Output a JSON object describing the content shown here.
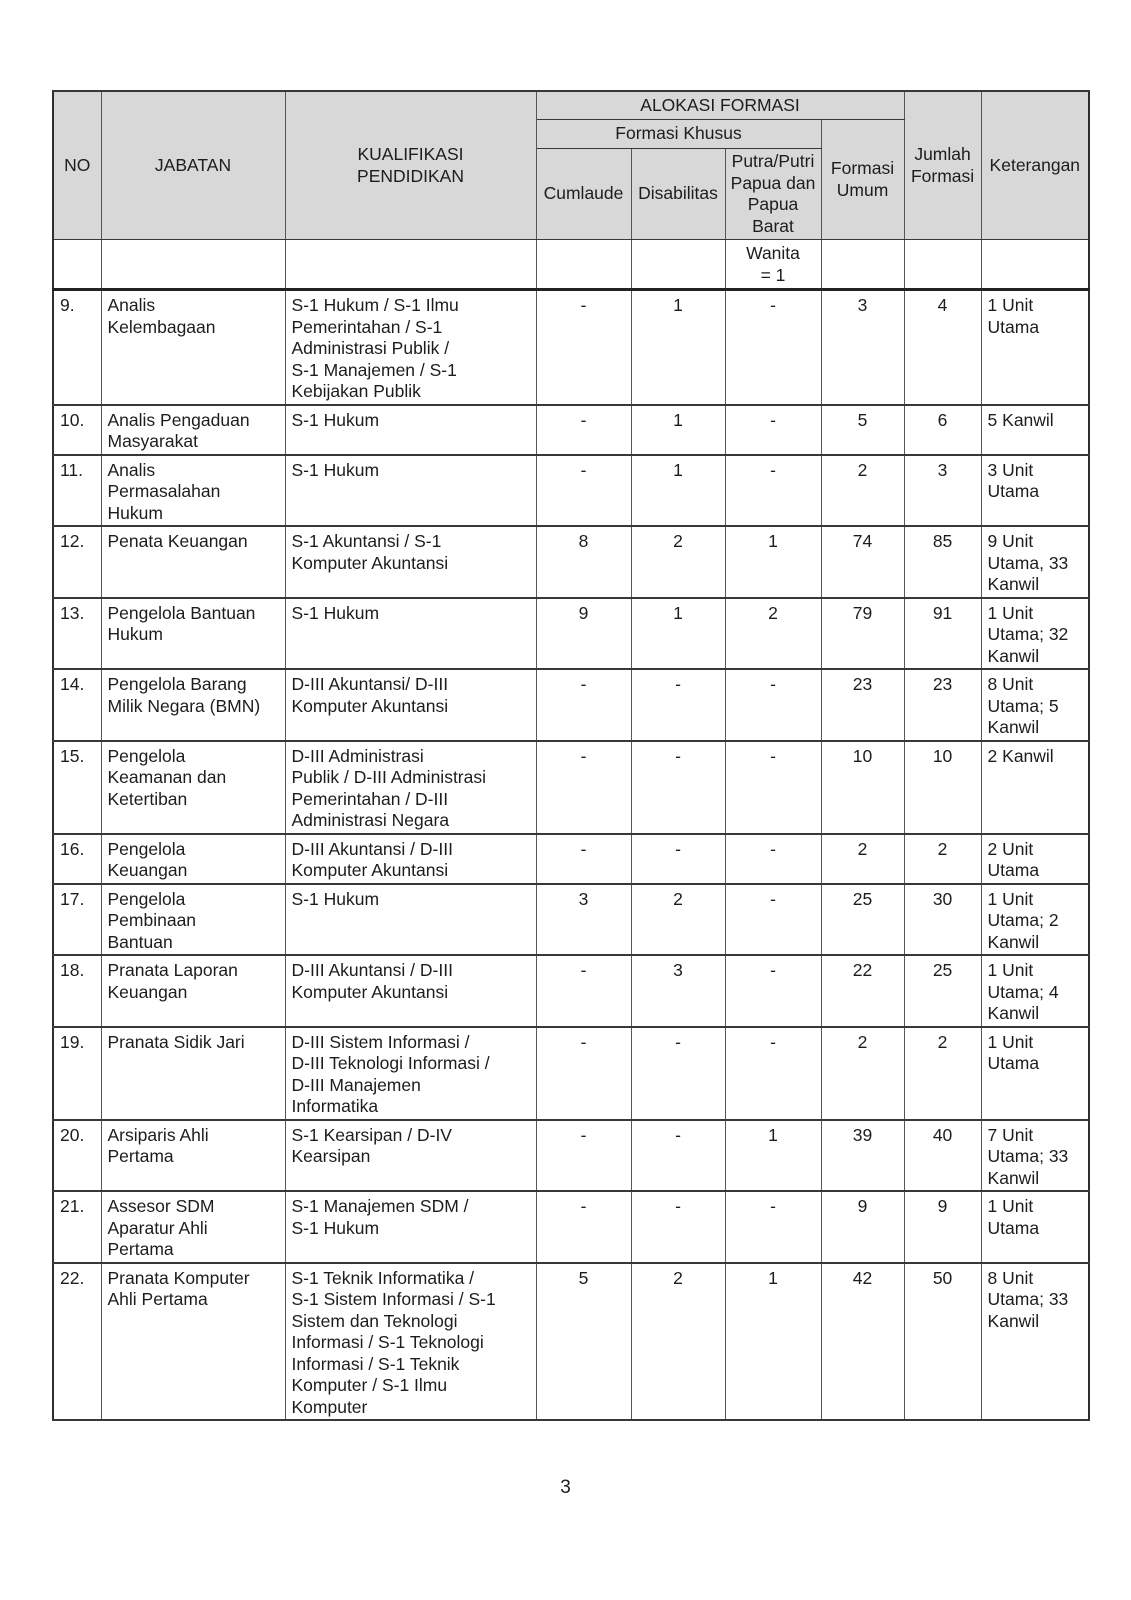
{
  "page": {
    "number": "3"
  },
  "colors": {
    "header_bg": "#d8d8d8",
    "border_dark": "#383838",
    "border_light": "#565656"
  },
  "table": {
    "headers": {
      "no": "NO",
      "jabatan": "JABATAN",
      "kualifikasi": "KUALIFIKASI\nPENDIDIKAN",
      "alokasi_formasi": "ALOKASI FORMASI",
      "formasi_khusus": "Formasi Khusus",
      "cumlaude": "Cumlaude",
      "disabilitas": "Disabilitas",
      "papua": "Putra/Putri\nPapua dan\nPapua\nBarat",
      "formasi_umum": "Formasi\nUmum",
      "jumlah_formasi": "Jumlah\nFormasi",
      "keterangan": "Keterangan"
    },
    "sub_header": {
      "papua_note": "Wanita\n= 1"
    },
    "rows": [
      {
        "no": "9.",
        "jabatan": "Analis\nKelembagaan",
        "kualifikasi": "S-1 Hukum / S-1 Ilmu\nPemerintahan / S-1\nAdministrasi Publik /\nS-1 Manajemen / S-1\nKebijakan Publik",
        "cumlaude": "-",
        "disabilitas": "1",
        "papua": "-",
        "formasi_umum": "3",
        "jumlah_formasi": "4",
        "keterangan": "1 Unit\nUtama"
      },
      {
        "no": "10.",
        "jabatan": "Analis Pengaduan\nMasyarakat",
        "kualifikasi": "S-1 Hukum",
        "cumlaude": "-",
        "disabilitas": "1",
        "papua": "-",
        "formasi_umum": "5",
        "jumlah_formasi": "6",
        "keterangan": "5 Kanwil"
      },
      {
        "no": "11.",
        "jabatan": "Analis\nPermasalahan\nHukum",
        "kualifikasi": "S-1 Hukum",
        "cumlaude": "-",
        "disabilitas": "1",
        "papua": "-",
        "formasi_umum": "2",
        "jumlah_formasi": "3",
        "keterangan": "3 Unit\nUtama"
      },
      {
        "no": "12.",
        "jabatan": "Penata Keuangan",
        "kualifikasi": "S-1 Akuntansi / S-1\nKomputer Akuntansi",
        "cumlaude": "8",
        "disabilitas": "2",
        "papua": "1",
        "formasi_umum": "74",
        "jumlah_formasi": "85",
        "keterangan": "9 Unit\nUtama, 33\nKanwil"
      },
      {
        "no": "13.",
        "jabatan": "Pengelola Bantuan\nHukum",
        "kualifikasi": "S-1 Hukum",
        "cumlaude": "9",
        "disabilitas": "1",
        "papua": "2",
        "formasi_umum": "79",
        "jumlah_formasi": "91",
        "keterangan": "1 Unit\nUtama; 32\nKanwil"
      },
      {
        "no": "14.",
        "jabatan": "Pengelola Barang\nMilik Negara (BMN)",
        "kualifikasi": "D-III Akuntansi/ D-III\nKomputer Akuntansi",
        "cumlaude": "-",
        "disabilitas": "-",
        "papua": "-",
        "formasi_umum": "23",
        "jumlah_formasi": "23",
        "keterangan": "8 Unit\nUtama; 5\nKanwil"
      },
      {
        "no": "15.",
        "jabatan": "Pengelola\nKeamanan dan\nKetertiban",
        "kualifikasi": "D-III Administrasi\nPublik / D-III Administrasi\nPemerintahan / D-III\nAdministrasi Negara",
        "cumlaude": "-",
        "disabilitas": "-",
        "papua": "-",
        "formasi_umum": "10",
        "jumlah_formasi": "10",
        "keterangan": "2 Kanwil"
      },
      {
        "no": "16.",
        "jabatan": "Pengelola\nKeuangan",
        "kualifikasi": "D-III Akuntansi / D-III\nKomputer Akuntansi",
        "cumlaude": "-",
        "disabilitas": "-",
        "papua": "-",
        "formasi_umum": "2",
        "jumlah_formasi": "2",
        "keterangan": "2 Unit\nUtama"
      },
      {
        "no": "17.",
        "jabatan": "Pengelola\nPembinaan\nBantuan",
        "kualifikasi": "S-1 Hukum",
        "cumlaude": "3",
        "disabilitas": "2",
        "papua": "-",
        "formasi_umum": "25",
        "jumlah_formasi": "30",
        "keterangan": "1 Unit\nUtama; 2\nKanwil"
      },
      {
        "no": "18.",
        "jabatan": "Pranata Laporan\nKeuangan",
        "kualifikasi": "D-III Akuntansi / D-III\nKomputer Akuntansi",
        "cumlaude": "-",
        "disabilitas": "3",
        "papua": "-",
        "formasi_umum": "22",
        "jumlah_formasi": "25",
        "keterangan": "1 Unit\nUtama; 4\nKanwil"
      },
      {
        "no": "19.",
        "jabatan": "Pranata Sidik Jari",
        "kualifikasi": "D-III Sistem Informasi /\nD-III Teknologi Informasi /\nD-III Manajemen\nInformatika",
        "cumlaude": "-",
        "disabilitas": "-",
        "papua": "-",
        "formasi_umum": "2",
        "jumlah_formasi": "2",
        "keterangan": "1 Unit\nUtama"
      },
      {
        "no": "20.",
        "jabatan": "Arsiparis Ahli\nPertama",
        "kualifikasi": "S-1 Kearsipan / D-IV\nKearsipan",
        "cumlaude": "-",
        "disabilitas": "-",
        "papua": "1",
        "formasi_umum": "39",
        "jumlah_formasi": "40",
        "keterangan": "7 Unit\nUtama; 33\nKanwil"
      },
      {
        "no": "21.",
        "jabatan": "Assesor SDM\nAparatur Ahli\nPertama",
        "kualifikasi": "S-1 Manajemen SDM /\nS-1 Hukum",
        "cumlaude": "-",
        "disabilitas": "-",
        "papua": "-",
        "formasi_umum": "9",
        "jumlah_formasi": "9",
        "keterangan": "1 Unit\nUtama"
      },
      {
        "no": "22.",
        "jabatan": "Pranata Komputer\nAhli Pertama",
        "kualifikasi": "S-1 Teknik Informatika /\nS-1 Sistem Informasi / S-1\nSistem dan Teknologi\nInformasi / S-1 Teknologi\nInformasi / S-1 Teknik\nKomputer / S-1 Ilmu\nKomputer",
        "cumlaude": "5",
        "disabilitas": "2",
        "papua": "1",
        "formasi_umum": "42",
        "jumlah_formasi": "50",
        "keterangan": "8 Unit\nUtama; 33\nKanwil"
      }
    ]
  }
}
